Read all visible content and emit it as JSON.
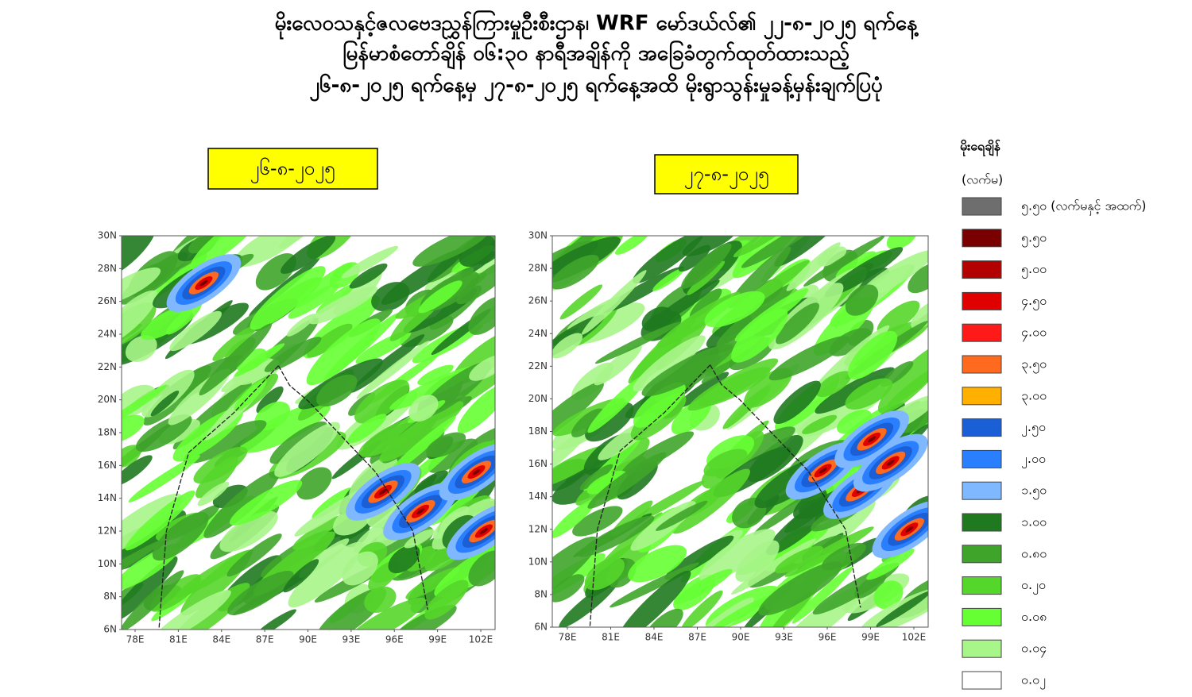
{
  "title_lines": [
    "မိုးလေဝသနှင့်ဇလဗေဒညွှန်ကြားမှုဦးစီးဌာန၊ WRF မော်ဒယ်လ်၏ ၂၂-၈-၂၀၂၅ ရက်နေ့",
    "မြန်မာစံတော်ချိန် ၀၆:၃၀ နာရီအချိန်ကို အခြေခံတွက်ထုတ်ထားသည့်",
    "၂၆-၈-၂၀၂၅ ရက်နေ့မှ ၂၇-၈-၂၀၂၅ ရက်နေ့အထိ မိုးရွာသွန်းမှုခန့်မှန်းချက်ပြပုံ"
  ],
  "panels": [
    {
      "label": "၂၆-၈-၂၀၂၅"
    },
    {
      "label": "၂၇-၈-၂၀၂၅"
    }
  ],
  "lat_labels": [
    "30N",
    "28N",
    "26N",
    "24N",
    "22N",
    "20N",
    "18N",
    "16N",
    "14N",
    "12N",
    "10N",
    "8N",
    "6N"
  ],
  "lon_labels": [
    "78E",
    "81E",
    "84E",
    "87E",
    "90E",
    "93E",
    "96E",
    "99E",
    "102E"
  ],
  "legend": {
    "title": "မိုးရေချိန်",
    "unit": "(လက်မ)",
    "items": [
      {
        "label": "၅.၅၀ (လက်မနှင့် အထက်)",
        "color": "#6e6e6e"
      },
      {
        "label": "၅.၅၀",
        "color": "#7a0000"
      },
      {
        "label": "၅.၀၀",
        "color": "#b30000"
      },
      {
        "label": "၄.၅၀",
        "color": "#e00000"
      },
      {
        "label": "၄.၀၀",
        "color": "#ff1a1a"
      },
      {
        "label": "၃.၅၀",
        "color": "#ff6a1e"
      },
      {
        "label": "၃.၀၀",
        "color": "#ffb000"
      },
      {
        "label": "၂.၅၀",
        "color": "#1a5fd6"
      },
      {
        "label": "၂.၀၀",
        "color": "#2a7fff"
      },
      {
        "label": "၁.၅၀",
        "color": "#7fb8ff"
      },
      {
        "label": "၁.၀၀",
        "color": "#1f7a1f"
      },
      {
        "label": "၀.၈၀",
        "color": "#3fa52a"
      },
      {
        "label": "၀.၂၀",
        "color": "#55d62a"
      },
      {
        "label": "၀.၀၈",
        "color": "#66ff33"
      },
      {
        "label": "၀.၀၄",
        "color": "#a8f58a"
      },
      {
        "label": "၀.၀၂",
        "color": "#ffffff"
      }
    ]
  }
}
